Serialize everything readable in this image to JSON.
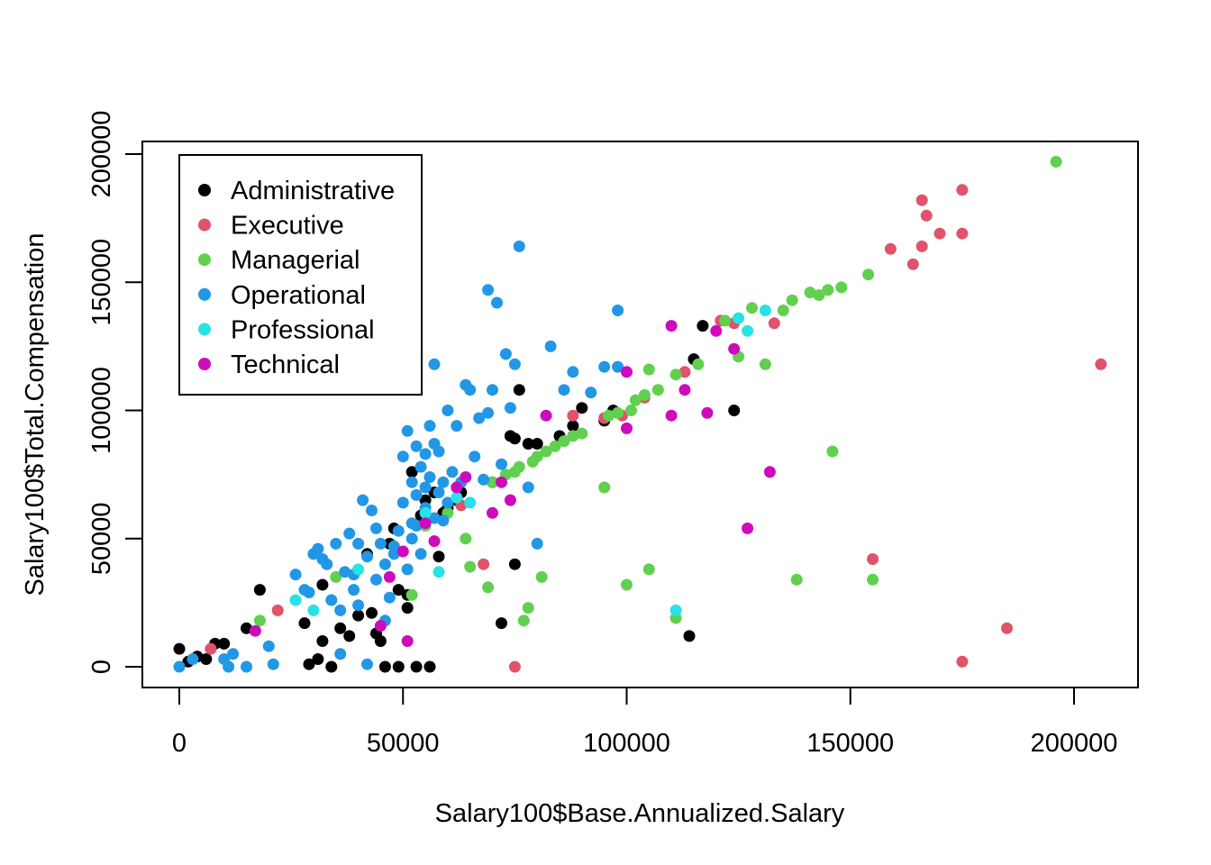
{
  "chart_data": {
    "type": "scatter",
    "title": "",
    "xlabel": "Salary100$Base.Annualized.Salary",
    "ylabel": "Salary100$Total.Compensation",
    "xlim": [
      -8000,
      216000
    ],
    "ylim": [
      -8000,
      213000
    ],
    "x_ticks": [
      0,
      50000,
      100000,
      150000,
      200000
    ],
    "y_ticks": [
      0,
      50000,
      100000,
      150000,
      200000
    ],
    "grid": false,
    "legend_position": "top-left",
    "series": [
      {
        "name": "Administrative",
        "color": "#000000",
        "points": [
          [
            0,
            7000
          ],
          [
            2000,
            2000
          ],
          [
            4000,
            4000
          ],
          [
            6000,
            3000
          ],
          [
            8000,
            9000
          ],
          [
            10000,
            9000
          ],
          [
            15000,
            15000
          ],
          [
            18000,
            30000
          ],
          [
            28000,
            17000
          ],
          [
            29000,
            1000
          ],
          [
            31000,
            3000
          ],
          [
            32000,
            32000
          ],
          [
            32000,
            10000
          ],
          [
            34000,
            0
          ],
          [
            36000,
            15000
          ],
          [
            38000,
            12000
          ],
          [
            40000,
            20000
          ],
          [
            42000,
            44000
          ],
          [
            43000,
            21000
          ],
          [
            44000,
            13000
          ],
          [
            45000,
            10000
          ],
          [
            46000,
            0
          ],
          [
            47000,
            48000
          ],
          [
            48000,
            54000
          ],
          [
            49000,
            30000
          ],
          [
            49000,
            0
          ],
          [
            51000,
            28000
          ],
          [
            51000,
            23000
          ],
          [
            52000,
            76000
          ],
          [
            53000,
            0
          ],
          [
            54000,
            59000
          ],
          [
            55000,
            65000
          ],
          [
            56000,
            0
          ],
          [
            57000,
            68000
          ],
          [
            58000,
            43000
          ],
          [
            59000,
            60000
          ],
          [
            60000,
            62000
          ],
          [
            62000,
            65000
          ],
          [
            63000,
            68000
          ],
          [
            70000,
            72000
          ],
          [
            72000,
            17000
          ],
          [
            74000,
            90000
          ],
          [
            75000,
            89000
          ],
          [
            75000,
            40000
          ],
          [
            76000,
            108000
          ],
          [
            78000,
            87000
          ],
          [
            80000,
            87000
          ],
          [
            85000,
            90000
          ],
          [
            88000,
            94000
          ],
          [
            90000,
            101000
          ],
          [
            95000,
            96000
          ],
          [
            97000,
            100000
          ],
          [
            114000,
            12000
          ],
          [
            115000,
            120000
          ],
          [
            117000,
            133000
          ],
          [
            124000,
            100000
          ]
        ]
      },
      {
        "name": "Executive",
        "color": "#DF536B",
        "points": [
          [
            7000,
            7000
          ],
          [
            22000,
            22000
          ],
          [
            63000,
            63000
          ],
          [
            68000,
            40000
          ],
          [
            75000,
            0
          ],
          [
            88000,
            98000
          ],
          [
            95000,
            97000
          ],
          [
            99000,
            98000
          ],
          [
            104000,
            105000
          ],
          [
            113000,
            115000
          ],
          [
            121000,
            135000
          ],
          [
            124000,
            134000
          ],
          [
            133000,
            134000
          ],
          [
            155000,
            42000
          ],
          [
            159000,
            163000
          ],
          [
            164000,
            157000
          ],
          [
            166000,
            164000
          ],
          [
            166000,
            182000
          ],
          [
            167000,
            176000
          ],
          [
            170000,
            169000
          ],
          [
            175000,
            169000
          ],
          [
            175000,
            186000
          ],
          [
            175000,
            2000
          ],
          [
            185000,
            15000
          ],
          [
            206000,
            118000
          ]
        ]
      },
      {
        "name": "Managerial",
        "color": "#61D04F",
        "points": [
          [
            18000,
            18000
          ],
          [
            35000,
            35000
          ],
          [
            52000,
            28000
          ],
          [
            55000,
            55000
          ],
          [
            60000,
            60000
          ],
          [
            64000,
            50000
          ],
          [
            65000,
            39000
          ],
          [
            69000,
            31000
          ],
          [
            70000,
            72000
          ],
          [
            73000,
            75000
          ],
          [
            75000,
            76000
          ],
          [
            76000,
            78000
          ],
          [
            77000,
            18000
          ],
          [
            78000,
            23000
          ],
          [
            79000,
            80000
          ],
          [
            80000,
            82000
          ],
          [
            81000,
            35000
          ],
          [
            82000,
            84000
          ],
          [
            84000,
            86000
          ],
          [
            86000,
            88000
          ],
          [
            88000,
            90000
          ],
          [
            90000,
            91000
          ],
          [
            95000,
            70000
          ],
          [
            96000,
            98000
          ],
          [
            98000,
            99000
          ],
          [
            100000,
            32000
          ],
          [
            101000,
            100000
          ],
          [
            102000,
            104000
          ],
          [
            104000,
            106000
          ],
          [
            105000,
            38000
          ],
          [
            105000,
            116000
          ],
          [
            107000,
            108000
          ],
          [
            111000,
            19000
          ],
          [
            111000,
            114000
          ],
          [
            116000,
            118000
          ],
          [
            122000,
            135000
          ],
          [
            125000,
            121000
          ],
          [
            128000,
            140000
          ],
          [
            131000,
            118000
          ],
          [
            135000,
            139000
          ],
          [
            137000,
            143000
          ],
          [
            138000,
            34000
          ],
          [
            141000,
            146000
          ],
          [
            143000,
            145000
          ],
          [
            145000,
            147000
          ],
          [
            146000,
            84000
          ],
          [
            148000,
            148000
          ],
          [
            154000,
            153000
          ],
          [
            155000,
            34000
          ],
          [
            196000,
            197000
          ]
        ]
      },
      {
        "name": "Operational",
        "color": "#2297E6",
        "points": [
          [
            0,
            0
          ],
          [
            3000,
            3000
          ],
          [
            10000,
            3000
          ],
          [
            11000,
            0
          ],
          [
            12000,
            5000
          ],
          [
            15000,
            0
          ],
          [
            20000,
            8000
          ],
          [
            21000,
            1000
          ],
          [
            26000,
            36000
          ],
          [
            28000,
            30000
          ],
          [
            29000,
            29000
          ],
          [
            30000,
            44000
          ],
          [
            31000,
            46000
          ],
          [
            32000,
            42000
          ],
          [
            33000,
            40000
          ],
          [
            34000,
            26000
          ],
          [
            35000,
            48000
          ],
          [
            36000,
            22000
          ],
          [
            37000,
            37000
          ],
          [
            38000,
            52000
          ],
          [
            39000,
            36000
          ],
          [
            40000,
            24000
          ],
          [
            41000,
            65000
          ],
          [
            42000,
            43000
          ],
          [
            43000,
            61000
          ],
          [
            44000,
            54000
          ],
          [
            45000,
            48000
          ],
          [
            46000,
            40000
          ],
          [
            47000,
            27000
          ],
          [
            48000,
            44000
          ],
          [
            49000,
            53000
          ],
          [
            50000,
            82000
          ],
          [
            50000,
            64000
          ],
          [
            51000,
            92000
          ],
          [
            51000,
            38000
          ],
          [
            52000,
            72000
          ],
          [
            52000,
            56000
          ],
          [
            53000,
            86000
          ],
          [
            53000,
            67000
          ],
          [
            54000,
            44000
          ],
          [
            54000,
            78000
          ],
          [
            55000,
            70000
          ],
          [
            55000,
            62000
          ],
          [
            56000,
            94000
          ],
          [
            56000,
            74000
          ],
          [
            57000,
            58000
          ],
          [
            57000,
            118000
          ],
          [
            58000,
            68000
          ],
          [
            58000,
            84000
          ],
          [
            59000,
            72000
          ],
          [
            60000,
            100000
          ],
          [
            60000,
            64000
          ],
          [
            61000,
            76000
          ],
          [
            62000,
            94000
          ],
          [
            63000,
            72000
          ],
          [
            64000,
            110000
          ],
          [
            65000,
            108000
          ],
          [
            66000,
            82000
          ],
          [
            67000,
            97000
          ],
          [
            68000,
            73000
          ],
          [
            69000,
            99000
          ],
          [
            69000,
            147000
          ],
          [
            70000,
            108000
          ],
          [
            71000,
            142000
          ],
          [
            72000,
            79000
          ],
          [
            73000,
            122000
          ],
          [
            74000,
            101000
          ],
          [
            75000,
            118000
          ],
          [
            76000,
            164000
          ],
          [
            78000,
            70000
          ],
          [
            80000,
            48000
          ],
          [
            83000,
            125000
          ],
          [
            86000,
            108000
          ],
          [
            88000,
            115000
          ],
          [
            92000,
            107000
          ],
          [
            95000,
            117000
          ],
          [
            98000,
            139000
          ],
          [
            98000,
            117000
          ],
          [
            52000,
            50000
          ],
          [
            48000,
            47000
          ],
          [
            44000,
            34000
          ],
          [
            40000,
            48000
          ],
          [
            36000,
            5000
          ],
          [
            42000,
            1000
          ],
          [
            46000,
            18000
          ],
          [
            39000,
            30000
          ],
          [
            55000,
            83000
          ],
          [
            57000,
            87000
          ],
          [
            53000,
            55000
          ],
          [
            59000,
            57000
          ]
        ]
      },
      {
        "name": "Professional",
        "color": "#28E2E5",
        "points": [
          [
            26000,
            26000
          ],
          [
            30000,
            22000
          ],
          [
            40000,
            38000
          ],
          [
            55000,
            60000
          ],
          [
            58000,
            37000
          ],
          [
            62000,
            66000
          ],
          [
            65000,
            64000
          ],
          [
            111000,
            22000
          ],
          [
            125000,
            136000
          ],
          [
            127000,
            131000
          ],
          [
            131000,
            139000
          ]
        ]
      },
      {
        "name": "Technical",
        "color": "#CD0BBC",
        "points": [
          [
            17000,
            14000
          ],
          [
            45000,
            16000
          ],
          [
            47000,
            35000
          ],
          [
            50000,
            45000
          ],
          [
            51000,
            10000
          ],
          [
            55000,
            56000
          ],
          [
            57000,
            49000
          ],
          [
            62000,
            70000
          ],
          [
            64000,
            74000
          ],
          [
            70000,
            60000
          ],
          [
            72000,
            72000
          ],
          [
            74000,
            65000
          ],
          [
            82000,
            98000
          ],
          [
            100000,
            115000
          ],
          [
            100000,
            93000
          ],
          [
            110000,
            133000
          ],
          [
            110000,
            98000
          ],
          [
            113000,
            108000
          ],
          [
            118000,
            99000
          ],
          [
            120000,
            131000
          ],
          [
            124000,
            124000
          ],
          [
            127000,
            54000
          ],
          [
            132000,
            76000
          ]
        ]
      }
    ]
  }
}
